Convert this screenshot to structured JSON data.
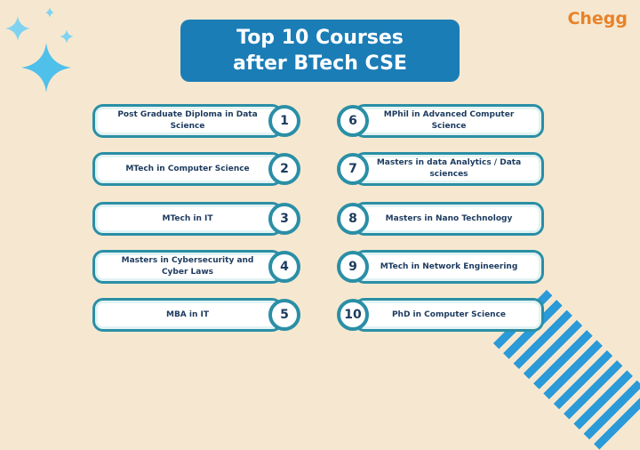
{
  "title": {
    "line1": "Top 10 Courses",
    "line2": "after BTech CSE"
  },
  "logo": "Chegg",
  "colors": {
    "background": "#f6e8d0",
    "title_bg": "#1b7db6",
    "accent": "#2a8fa6",
    "logo": "#e8822a"
  },
  "courses": [
    {
      "num": "1",
      "label": "Post Graduate Diploma in Data Science"
    },
    {
      "num": "2",
      "label": "MTech in Computer Science"
    },
    {
      "num": "3",
      "label": "MTech in IT"
    },
    {
      "num": "4",
      "label": "Masters in Cybersecurity and Cyber Laws"
    },
    {
      "num": "5",
      "label": "MBA in IT"
    },
    {
      "num": "6",
      "label": "MPhil in Advanced Computer Science"
    },
    {
      "num": "7",
      "label": "Masters in data Analytics / Data sciences"
    },
    {
      "num": "8",
      "label": "Masters in Nano Technology"
    },
    {
      "num": "9",
      "label": "MTech in Network Engineering"
    },
    {
      "num": "10",
      "label": "PhD in Computer Science"
    }
  ]
}
